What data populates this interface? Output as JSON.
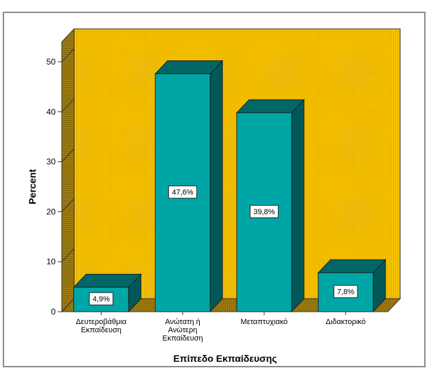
{
  "chart_data": {
    "type": "bar",
    "style": "3d",
    "categories": [
      [
        "Δευτεροβάθμια",
        "Εκπαίδευση"
      ],
      [
        "Ανώτατη ή",
        "Ανώτερη",
        "Εκπαίδευση"
      ],
      [
        "Μεταπτυχιακό"
      ],
      [
        "Διδακτορικό"
      ]
    ],
    "values": [
      4.9,
      47.6,
      39.8,
      7.8
    ],
    "data_labels": [
      "4,9%",
      "47,6%",
      "39,8%",
      "7,8%"
    ],
    "xlabel": "Επίπεδο Εκπαίδευσης",
    "ylabel": "Percent",
    "ylim": [
      0,
      50
    ],
    "yticks": [
      0,
      10,
      20,
      30,
      40,
      50
    ],
    "grid": false,
    "colors": {
      "bar_front": "#00a6a6",
      "bar_top": "#006666",
      "bar_side": "#005858",
      "wall": "#f5c000",
      "floor": "#8c6e10",
      "frame": "#808080"
    }
  }
}
